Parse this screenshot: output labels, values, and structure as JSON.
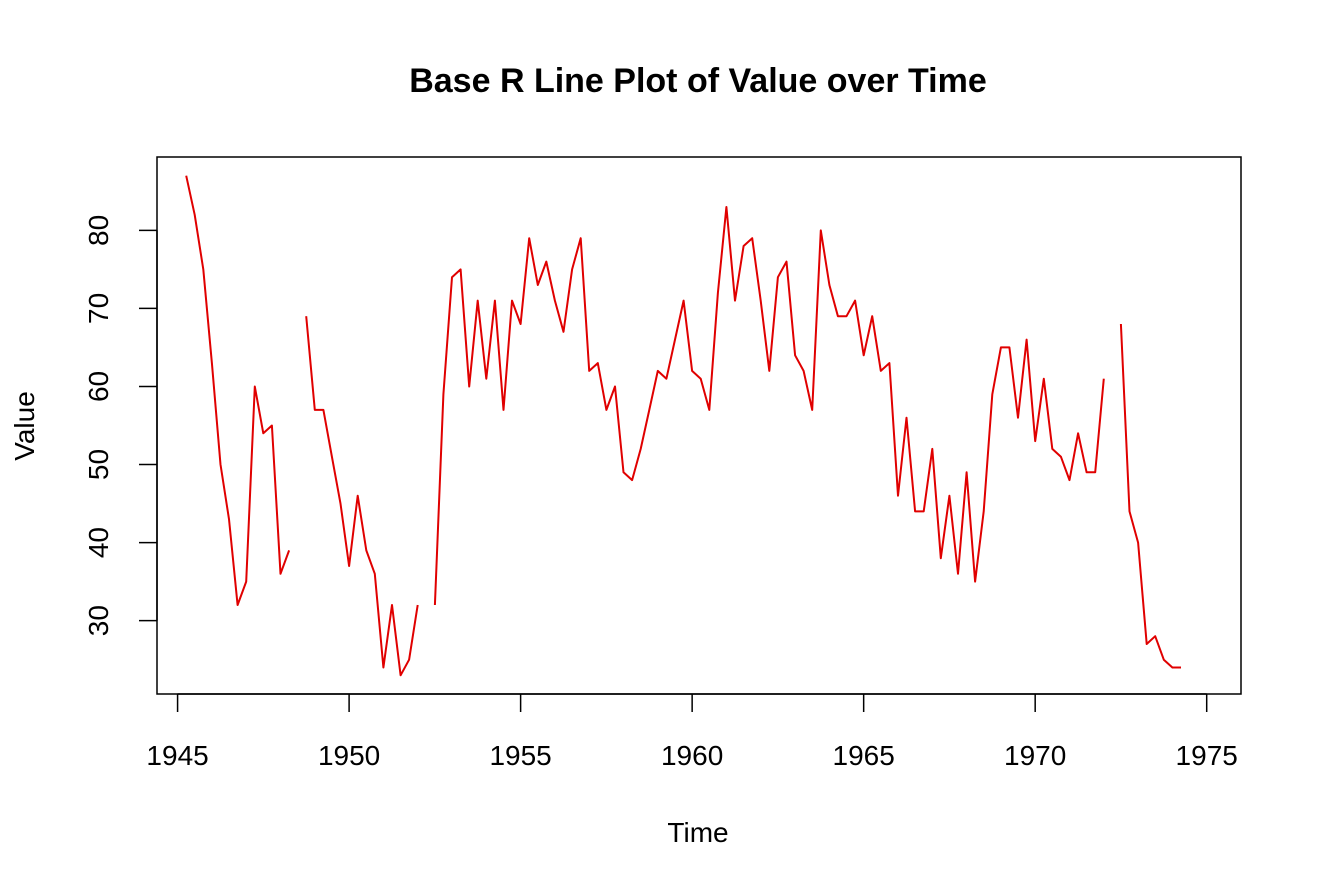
{
  "chart_data": {
    "type": "line",
    "title": "Base R Line Plot of Value over Time",
    "xlabel": "Time",
    "ylabel": "Value",
    "xlim": [
      1944.4,
      1976.0
    ],
    "ylim": [
      20.6,
      89.4
    ],
    "xticks": [
      1945,
      1950,
      1955,
      1960,
      1965,
      1970,
      1975
    ],
    "yticks": [
      30,
      40,
      50,
      60,
      70,
      80
    ],
    "xtick_labels": [
      "1945",
      "1950",
      "1955",
      "1960",
      "1965",
      "1970",
      "1975"
    ],
    "ytick_labels": [
      "30",
      "40",
      "50",
      "60",
      "70",
      "80"
    ],
    "grid": false,
    "box": true,
    "line_color": "#e00000",
    "series": [
      {
        "x_start": 1945.25,
        "x_step": 0.25,
        "values": [
          87,
          82,
          75,
          63,
          50,
          43,
          32,
          35,
          60,
          54,
          55,
          36,
          39,
          null,
          69,
          57,
          57,
          51,
          45,
          37,
          46,
          39,
          36,
          24,
          32,
          23,
          25,
          32,
          null,
          32,
          59,
          74,
          75,
          60,
          71,
          61,
          71,
          57,
          71,
          68,
          79,
          73,
          76,
          71,
          67,
          75,
          79,
          62,
          63,
          57,
          60,
          49,
          48,
          52,
          57,
          62,
          61,
          66,
          71,
          62,
          61,
          57,
          72,
          83,
          71,
          78,
          79,
          71,
          62,
          74,
          76,
          64,
          62,
          57,
          80,
          73,
          69,
          69,
          71,
          64,
          69,
          62,
          63,
          46,
          56,
          44,
          44,
          52,
          38,
          46,
          36,
          49,
          35,
          44,
          59,
          65,
          65,
          56,
          66,
          53,
          61,
          52,
          51,
          48,
          54,
          49,
          49,
          61,
          null,
          68,
          44,
          40,
          27,
          28,
          25,
          24,
          24
        ]
      }
    ]
  }
}
